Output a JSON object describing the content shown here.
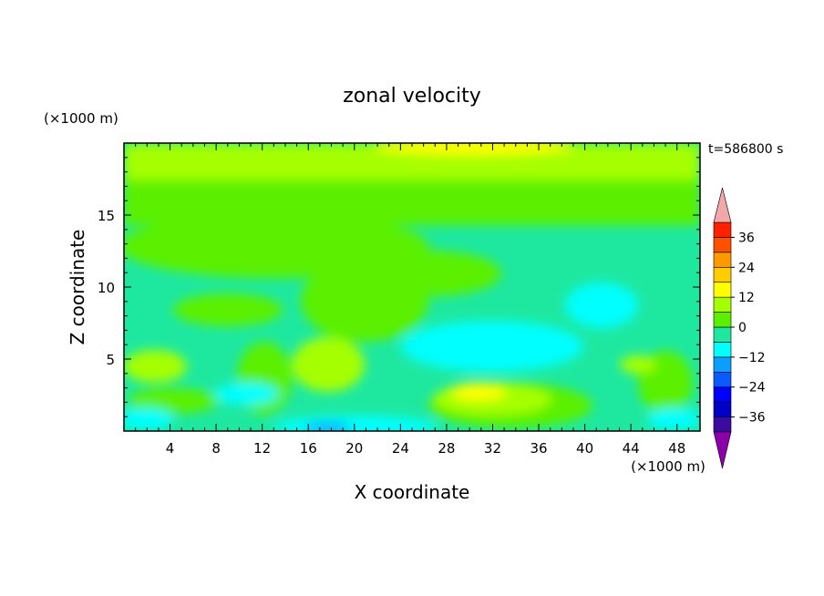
{
  "chart_data": {
    "type": "heatmap",
    "title": "zonal velocity",
    "xlabel": "X coordinate",
    "ylabel": "Z coordinate",
    "x_unit": "(×1000 m)",
    "y_unit": "(×1000 m)",
    "time_label": "t=586800 s",
    "xlim": [
      0,
      50
    ],
    "ylim": [
      0,
      20
    ],
    "x_ticks": [
      "4",
      "8",
      "12",
      "16",
      "20",
      "24",
      "28",
      "32",
      "36",
      "40",
      "44",
      "48"
    ],
    "y_ticks": [
      "5",
      "10",
      "15"
    ],
    "colorbar": {
      "levels": [
        -42,
        -36,
        -30,
        -24,
        -18,
        -12,
        -6,
        0,
        6,
        12,
        18,
        24,
        30,
        36,
        42
      ],
      "tick_labels": [
        "36",
        "24",
        "12",
        "0",
        "−12",
        "−24",
        "−36"
      ],
      "tick_values": [
        36,
        24,
        12,
        0,
        -12,
        -24,
        -36
      ],
      "colors": [
        "#8b00a8",
        "#3d0aa0",
        "#0000c8",
        "#0000ff",
        "#0a5aff",
        "#0ba0ff",
        "#00ffff",
        "#1ee8a0",
        "#5cf000",
        "#a6ff00",
        "#ffff00",
        "#ffcc00",
        "#ff9900",
        "#ff5000",
        "#ff2000",
        "#f2a8a8"
      ],
      "extend": "both"
    },
    "field_description_points": [
      {
        "x": 2,
        "z": 4.5,
        "u": 8
      },
      {
        "x": 18,
        "z": 0.5,
        "u": -10
      },
      {
        "x": 30,
        "z": 3,
        "u": 14
      },
      {
        "x": 34,
        "z": 6,
        "u": -10
      },
      {
        "x": 20,
        "z": 10,
        "u": 3
      },
      {
        "x": 25,
        "z": 19.5,
        "u": 10
      },
      {
        "x": 40,
        "z": 17,
        "u": 3
      },
      {
        "x": 10,
        "z": 12,
        "u": -2
      }
    ]
  }
}
